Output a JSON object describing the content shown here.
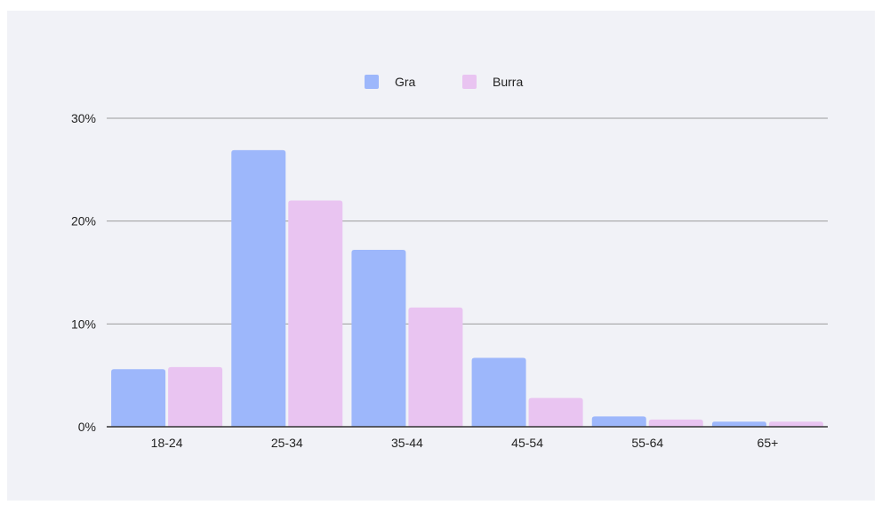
{
  "chart_data": {
    "type": "bar",
    "title": "",
    "xlabel": "",
    "ylabel": "",
    "categories": [
      "18-24",
      "25-34",
      "35-44",
      "45-54",
      "55-64",
      "65+"
    ],
    "series": [
      {
        "name": "Gra",
        "color": "#9db7fb",
        "values": [
          5.6,
          26.9,
          17.2,
          6.7,
          1.0,
          0.5
        ]
      },
      {
        "name": "Burra",
        "color": "#e9c4f1",
        "values": [
          5.8,
          22.0,
          11.6,
          2.8,
          0.7,
          0.5
        ]
      }
    ],
    "ylim": [
      0,
      30
    ],
    "yticks": [
      0,
      10,
      20,
      30
    ],
    "ytick_labels": [
      "0%",
      "10%",
      "20%",
      "30%"
    ],
    "grid": true,
    "legend_position": "top-center"
  },
  "colors": {
    "background": "#f1f2f7",
    "gridline": "#9c9c9c",
    "baseline": "#333333"
  }
}
